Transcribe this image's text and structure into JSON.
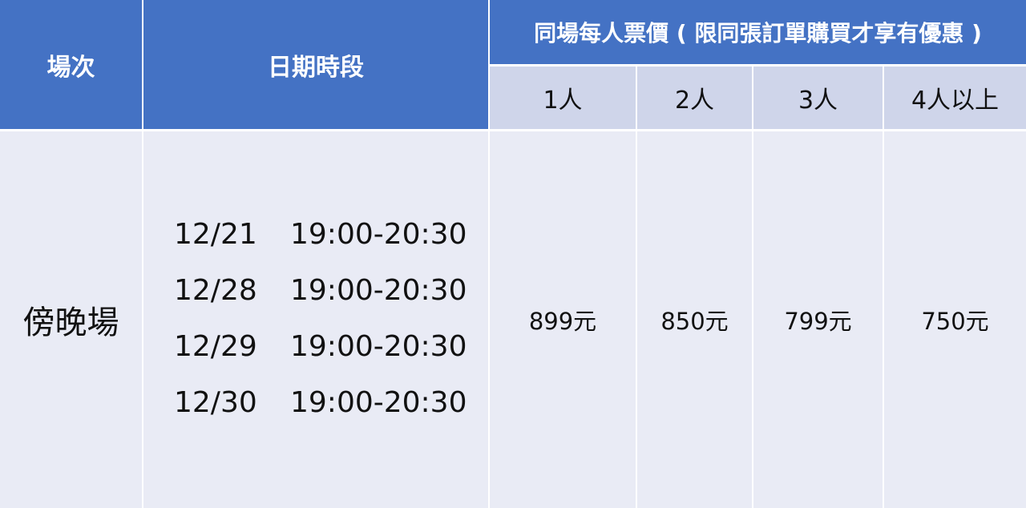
{
  "colors": {
    "header": "#4472C4",
    "subheader": "#CFD5EA",
    "body": "#E9EBF5"
  },
  "headers": {
    "session": "場次",
    "date_time": "日期時段",
    "price_group": "同場每人票價 ( 限同張訂單購買才享有優惠 )",
    "tiers": [
      "1人",
      "2人",
      "3人",
      "4人以上"
    ]
  },
  "row": {
    "session": "傍晚場",
    "slots": [
      {
        "date": "12/21",
        "time": "19:00-20:30"
      },
      {
        "date": "12/28",
        "time": "19:00-20:30"
      },
      {
        "date": "12/29",
        "time": "19:00-20:30"
      },
      {
        "date": "12/30",
        "time": "19:00-20:30"
      }
    ],
    "prices": [
      "899元",
      "850元",
      "799元",
      "750元"
    ]
  }
}
